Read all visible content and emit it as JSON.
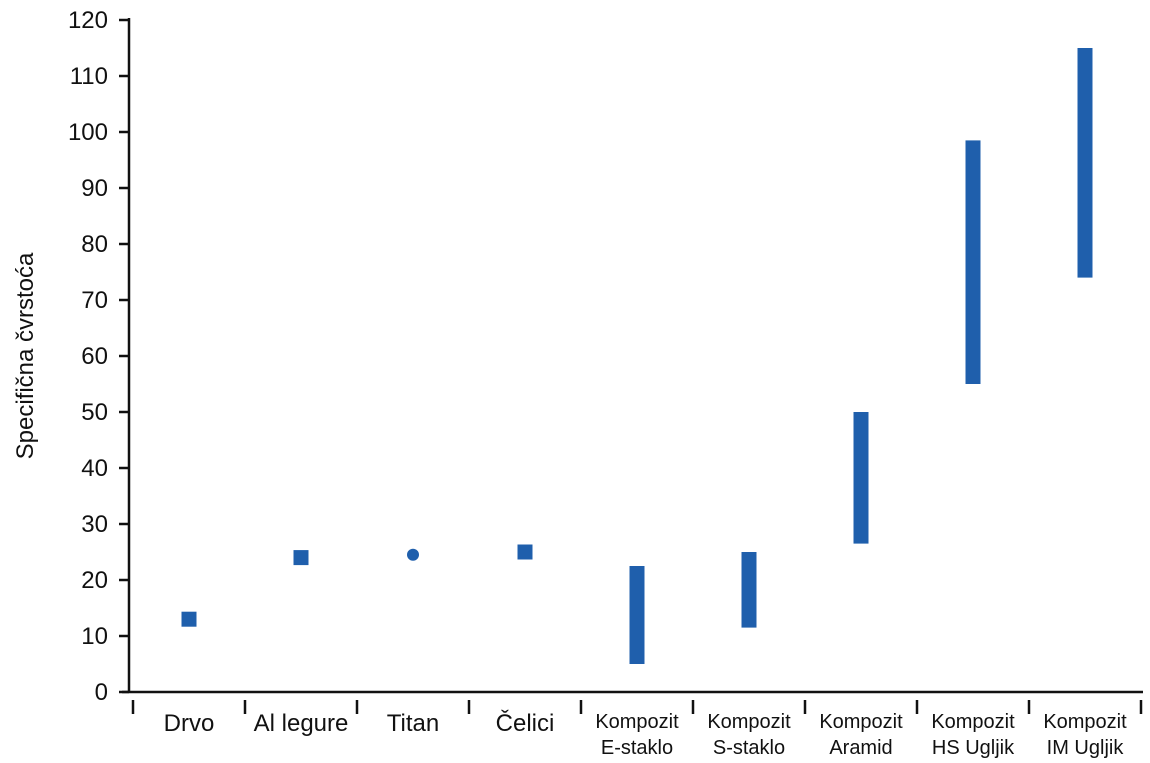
{
  "chart_data": {
    "type": "range-bar",
    "ylabel": "Specifična čvrstoća",
    "xlabel": "",
    "ylim": [
      0,
      120
    ],
    "yticks": [
      0,
      10,
      20,
      30,
      40,
      50,
      60,
      70,
      80,
      90,
      100,
      110,
      120
    ],
    "grid": false,
    "legend": "none",
    "mark_color": "#1f5fac",
    "categories": [
      {
        "lines": [
          "Drvo"
        ],
        "marker": "square",
        "value": 13
      },
      {
        "lines": [
          "Al legure"
        ],
        "marker": "square",
        "value": 24
      },
      {
        "lines": [
          "Titan"
        ],
        "marker": "circle",
        "value": 24.5
      },
      {
        "lines": [
          "Čelici"
        ],
        "marker": "square",
        "value": 25
      },
      {
        "lines": [
          "Kompozit",
          "E-staklo"
        ],
        "marker": "range",
        "min": 5,
        "max": 22.5
      },
      {
        "lines": [
          "Kompozit",
          "S-staklo"
        ],
        "marker": "range",
        "min": 11.5,
        "max": 25
      },
      {
        "lines": [
          "Kompozit",
          "Aramid"
        ],
        "marker": "range",
        "min": 26.5,
        "max": 50
      },
      {
        "lines": [
          "Kompozit",
          "HS Ugljik"
        ],
        "marker": "range",
        "min": 55,
        "max": 98.5
      },
      {
        "lines": [
          "Kompozit",
          "IM Ugljik"
        ],
        "marker": "range",
        "min": 74,
        "max": 115
      }
    ]
  }
}
